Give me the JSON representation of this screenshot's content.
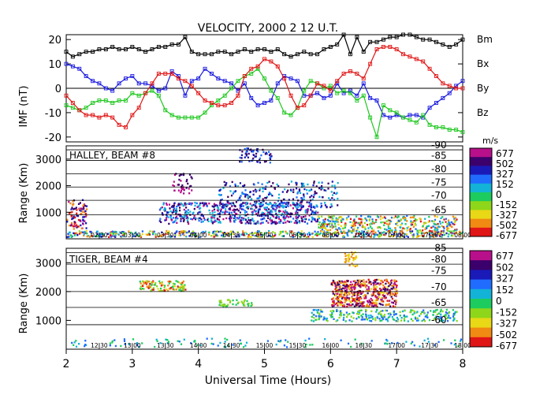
{
  "chart_data": [
    {
      "type": "line",
      "title": "VELOCITY, 2000 2 12 U.T.",
      "ylabel": "IMF (nT)",
      "ylim": [
        -22,
        22
      ],
      "yticks": [
        20,
        10,
        0,
        -10,
        -20
      ],
      "xlim": [
        2,
        8
      ],
      "grid": false,
      "legend_placement": "right",
      "x": [
        2.0,
        2.1,
        2.2,
        2.3,
        2.4,
        2.5,
        2.6,
        2.7,
        2.8,
        2.9,
        3.0,
        3.1,
        3.2,
        3.3,
        3.4,
        3.5,
        3.6,
        3.7,
        3.8,
        3.9,
        4.0,
        4.1,
        4.2,
        4.3,
        4.4,
        4.5,
        4.6,
        4.7,
        4.8,
        4.9,
        5.0,
        5.1,
        5.2,
        5.3,
        5.4,
        5.5,
        5.6,
        5.7,
        5.8,
        5.9,
        6.0,
        6.1,
        6.2,
        6.3,
        6.4,
        6.5,
        6.6,
        6.7,
        6.8,
        6.9,
        7.0,
        7.1,
        7.2,
        7.3,
        7.4,
        7.5,
        7.6,
        7.7,
        7.8,
        7.9,
        8.0
      ],
      "series": [
        {
          "name": "Bm",
          "color": "#000000",
          "values": [
            15,
            13,
            14,
            15,
            15,
            16,
            16,
            17,
            16,
            16,
            17,
            16,
            15,
            16,
            17,
            17,
            18,
            18,
            21,
            15,
            14,
            14,
            14,
            15,
            15,
            14,
            15,
            16,
            15,
            16,
            16,
            15,
            16,
            14,
            13,
            14,
            15,
            14,
            14,
            16,
            17,
            18,
            22,
            14,
            21,
            15,
            19,
            19,
            20,
            21,
            21,
            22,
            22,
            21,
            20,
            20,
            19,
            18,
            17,
            18,
            20
          ]
        },
        {
          "name": "Bx",
          "color": "#1a1adf",
          "values": [
            10,
            9,
            8,
            5,
            3,
            2,
            0,
            -1,
            2,
            4,
            5,
            2,
            2,
            1,
            -1,
            0,
            7,
            5,
            -3,
            3,
            4,
            8,
            6,
            4,
            3,
            2,
            -1,
            2,
            -4,
            -7,
            -6,
            -5,
            2,
            5,
            4,
            3,
            -3,
            -3,
            -2,
            -4,
            -3,
            2,
            -2,
            -1,
            -3,
            2,
            -4,
            -5,
            -11,
            -12,
            -11,
            -12,
            -11,
            -11,
            -12,
            -8,
            -6,
            -4,
            -2,
            1,
            3
          ]
        },
        {
          "name": "By",
          "color": "#1fc71f",
          "values": [
            -7,
            -8,
            -9,
            -8,
            -6,
            -5,
            -5,
            -6,
            -5,
            -5,
            -2,
            -3,
            -2,
            -1,
            -3,
            -9,
            -11,
            -12,
            -12,
            -12,
            -12,
            -10,
            -7,
            -5,
            -3,
            0,
            3,
            5,
            6,
            8,
            4,
            -1,
            -4,
            -10,
            -11,
            -8,
            -1,
            3,
            2,
            0,
            1,
            -2,
            -1,
            -2,
            -5,
            -3,
            -12,
            -20,
            -7,
            -9,
            -10,
            -12,
            -13,
            -14,
            -11,
            -15,
            -16,
            -16,
            -17,
            -17,
            -18
          ]
        },
        {
          "name": "Bz",
          "color": "#e01515",
          "values": [
            -3,
            -6,
            -9,
            -11,
            -11,
            -12,
            -11,
            -12,
            -15,
            -16,
            -11,
            -8,
            -2,
            2,
            6,
            6,
            6,
            4,
            3,
            1,
            -2,
            -5,
            -6,
            -7,
            -7,
            -6,
            -3,
            5,
            8,
            9,
            12,
            11,
            9,
            4,
            -3,
            -8,
            -7,
            -3,
            2,
            1,
            -1,
            3,
            6,
            7,
            6,
            4,
            10,
            16,
            17,
            17,
            16,
            14,
            13,
            12,
            11,
            8,
            5,
            2,
            1,
            0,
            0
          ]
        }
      ]
    },
    {
      "type": "heatmap",
      "title": "HALLEY, BEAM #8",
      "ylabel": "Range (Km)",
      "unit": "m/s",
      "yticks": [
        1000,
        2000,
        3000
      ],
      "xlim": [
        2,
        8
      ],
      "ylim": [
        0,
        3500
      ],
      "lat_labels": [
        "-90",
        "-85",
        "-80",
        "-75",
        "-70",
        "-65"
      ],
      "time_labels": [
        "02:30",
        "03:00",
        "03:30",
        "04:00",
        "04:30",
        "05:00",
        "05:30",
        "06:00",
        "06:30",
        "07:00",
        "07:30",
        "08:00"
      ],
      "colorbar_ticks": [
        "677",
        "502",
        "327",
        "152",
        "0",
        "-152",
        "-327",
        "-502",
        "-677"
      ]
    },
    {
      "type": "heatmap",
      "title": "TIGER, BEAM #4",
      "ylabel": "Range (Km)",
      "unit": "",
      "yticks": [
        1000,
        2000,
        3000
      ],
      "xlim": [
        2,
        8
      ],
      "ylim": [
        0,
        3500
      ],
      "lat_labels": [
        "-85",
        "-80",
        "-75",
        "-70",
        "-65",
        "-60"
      ],
      "time_labels": [
        "12:30",
        "13:00",
        "13:30",
        "14:00",
        "14:30",
        "15:00",
        "15:30",
        "16:00",
        "16:30",
        "17:00",
        "17:30",
        "18:00"
      ],
      "colorbar_ticks": [
        "677",
        "502",
        "327",
        "152",
        "0",
        "-152",
        "-327",
        "-502",
        "-677"
      ]
    }
  ],
  "x_axis": {
    "label": "Universal Time (Hours)",
    "ticks": [
      "2",
      "3",
      "4",
      "5",
      "6",
      "7",
      "8"
    ]
  }
}
